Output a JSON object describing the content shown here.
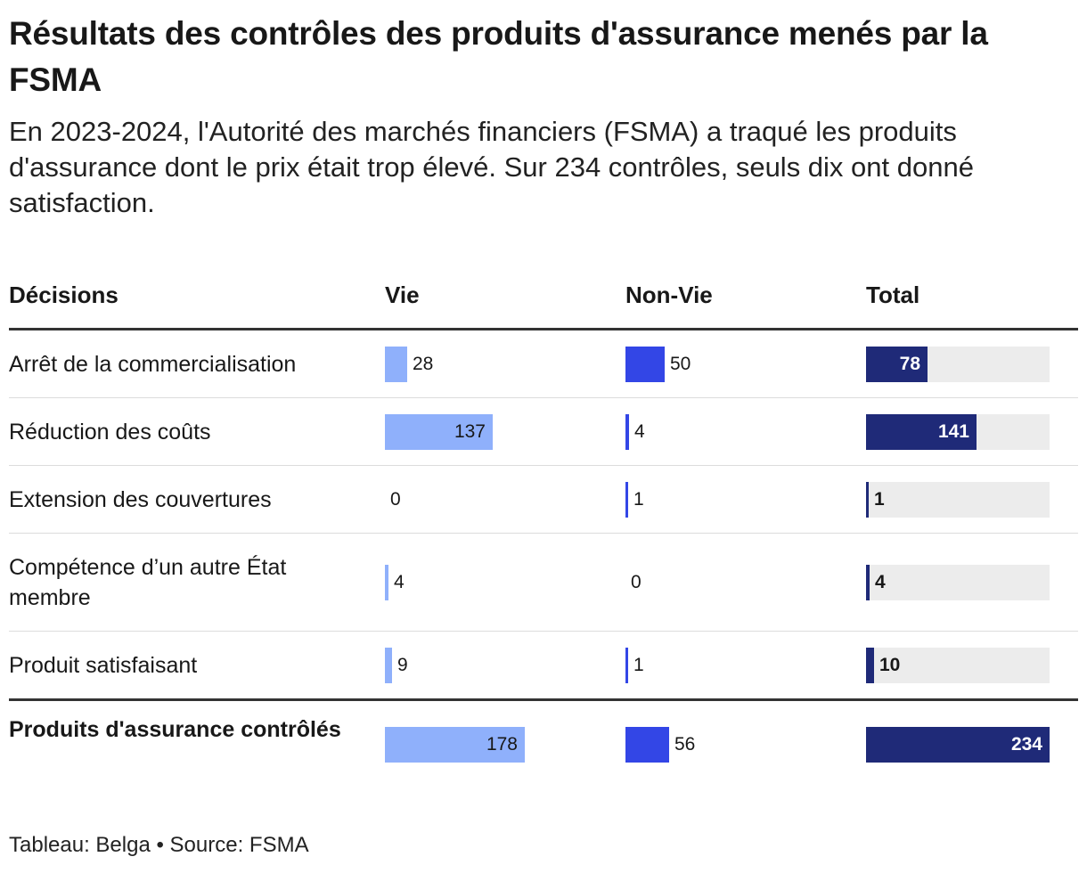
{
  "title": "Résultats des contrôles des produits d'assurance menés par la FSMA",
  "subtitle": "En 2023-2024, l'Autorité des marchés financiers (FSMA) a traqué les produits d'assurance dont le prix était trop élevé. Sur 234 contrôles, seuls dix ont donné satisfaction.",
  "footer": "Tableau: Belga • Source: FSMA",
  "colors": {
    "vie": "#8fb0fb",
    "non_vie": "#3346e6",
    "total": "#1f2a78",
    "total_track": "#ececec"
  },
  "chart_data": {
    "type": "table",
    "columns": [
      "Décisions",
      "Vie",
      "Non-Vie",
      "Total"
    ],
    "rows": [
      {
        "label": "Arrêt de la commercialisation",
        "vie": 28,
        "non_vie": 50,
        "total": 78
      },
      {
        "label": "Réduction des coûts",
        "vie": 137,
        "non_vie": 4,
        "total": 141
      },
      {
        "label": "Extension des couvertures",
        "vie": 0,
        "non_vie": 1,
        "total": 1
      },
      {
        "label": "Compétence d’un autre État membre",
        "vie": 4,
        "non_vie": 0,
        "total": 4
      },
      {
        "label": "Produit satisfaisant",
        "vie": 9,
        "non_vie": 1,
        "total": 10
      }
    ],
    "total_row": {
      "label": "Produits d'assurance contrôlés",
      "vie": 178,
      "non_vie": 56,
      "total": 234
    }
  }
}
